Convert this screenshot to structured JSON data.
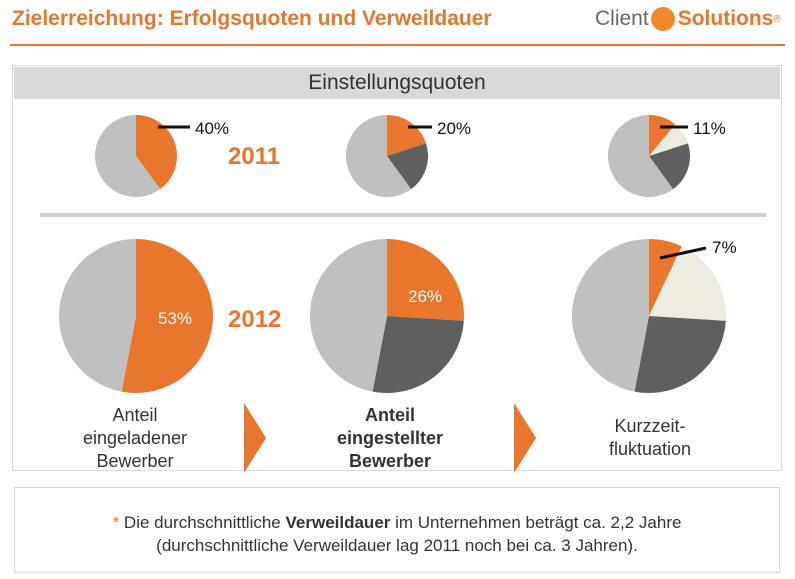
{
  "header": {
    "title": "Zielerreichung: Erfolgsquoten und Verweildauer",
    "logo_left": "Client",
    "logo_right": "Solutions",
    "logo_mark": "®"
  },
  "banner": "Einstellungsquoten",
  "colors": {
    "accent": "#e8762c",
    "gray": "#c0c0c0",
    "dark": "#5f5f5f",
    "cream": "#eeebe1"
  },
  "chart_data": [
    {
      "type": "pie",
      "year": "2011",
      "metric": "Anteil eingeladener Bewerber",
      "slices": [
        {
          "value": 40,
          "color": "#e8762c",
          "label": "40%"
        },
        {
          "value": 60,
          "color": "#c0c0c0"
        }
      ]
    },
    {
      "type": "pie",
      "year": "2011",
      "metric": "Anteil eingestellter Bewerber",
      "slices": [
        {
          "value": 20,
          "color": "#e8762c",
          "label": "20%"
        },
        {
          "value": 20,
          "color": "#5f5f5f"
        },
        {
          "value": 60,
          "color": "#c0c0c0"
        }
      ]
    },
    {
      "type": "pie",
      "year": "2011",
      "metric": "Kurzzeitfluktuation",
      "slices": [
        {
          "value": 11,
          "color": "#e8762c",
          "label": "11%"
        },
        {
          "value": 9,
          "color": "#eeebe1"
        },
        {
          "value": 20,
          "color": "#5f5f5f"
        },
        {
          "value": 60,
          "color": "#c0c0c0"
        }
      ]
    },
    {
      "type": "pie",
      "year": "2012",
      "metric": "Anteil eingeladener Bewerber",
      "slices": [
        {
          "value": 53,
          "color": "#e8762c",
          "label": "53%"
        },
        {
          "value": 47,
          "color": "#c0c0c0"
        }
      ]
    },
    {
      "type": "pie",
      "year": "2012",
      "metric": "Anteil eingestellter Bewerber",
      "slices": [
        {
          "value": 26,
          "color": "#e8762c",
          "label": "26%"
        },
        {
          "value": 27,
          "color": "#5f5f5f"
        },
        {
          "value": 47,
          "color": "#c0c0c0"
        }
      ]
    },
    {
      "type": "pie",
      "year": "2012",
      "metric": "Kurzzeitfluktuation",
      "slices": [
        {
          "value": 7,
          "color": "#e8762c",
          "label": "7%"
        },
        {
          "value": 19,
          "color": "#eeebe1"
        },
        {
          "value": 27,
          "color": "#5f5f5f"
        },
        {
          "value": 47,
          "color": "#c0c0c0"
        }
      ]
    }
  ],
  "labels": {
    "pct": [
      "40%",
      "20%",
      "11%",
      "53%",
      "26%",
      "7%"
    ],
    "year_2011": "2011",
    "year_2012": "2012",
    "col1_line1": "Anteil",
    "col1_line2": "eingeladener",
    "col1_line3": "Bewerber",
    "col2_line1": "Anteil",
    "col2_line2": "eingestellter",
    "col2_line3": "Bewerber",
    "col3_line1": "Kurzzeit-",
    "col3_line2": "fluktuation"
  },
  "note": {
    "star": "*",
    "pre": " Die durchschnittliche ",
    "bold": "Verweildauer",
    "post": " im Unternehmen beträgt ca. 2,2 Jahre",
    "line2": "(durchschnittliche Verweildauer lag 2011 noch bei ca. 3 Jahren)."
  }
}
